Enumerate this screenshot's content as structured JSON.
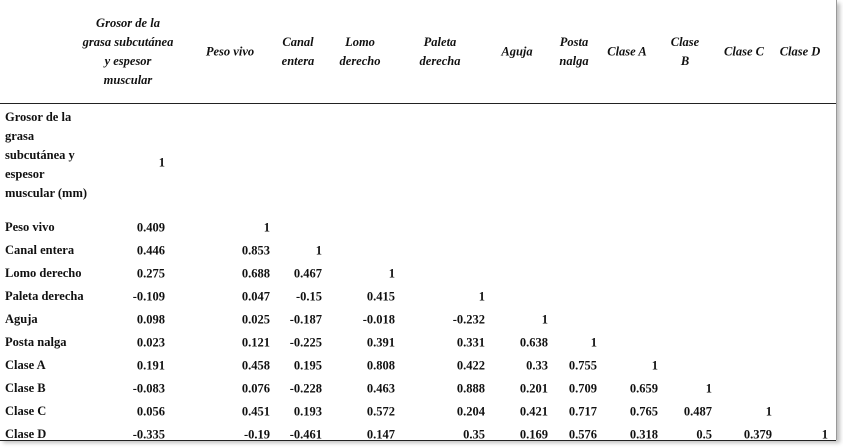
{
  "table": {
    "header": [
      "Grosor de la grasa subcutánea y espesor muscular",
      "Peso vivo",
      "Canal entera",
      "Lomo derecho",
      "Paleta derecha",
      "Aguja",
      "Posta nalga",
      "Clase A",
      "Clase B",
      "Clase C",
      "Clase D"
    ],
    "rows": [
      {
        "label": "Grosor de la grasa subcutánea y espesor muscular (mm)",
        "values": [
          1
        ]
      },
      {
        "label": "Peso vivo",
        "values": [
          0.409,
          1
        ]
      },
      {
        "label": "Canal entera",
        "values": [
          0.446,
          0.853,
          1
        ]
      },
      {
        "label": "Lomo derecho",
        "values": [
          0.275,
          0.688,
          0.467,
          1
        ]
      },
      {
        "label": "Paleta derecha",
        "values": [
          -0.109,
          0.047,
          -0.15,
          0.415,
          1
        ]
      },
      {
        "label": "Aguja",
        "values": [
          0.098,
          0.025,
          -0.187,
          -0.018,
          -0.232,
          1
        ]
      },
      {
        "label": "Posta nalga",
        "values": [
          0.023,
          0.121,
          -0.225,
          0.391,
          0.331,
          0.638,
          1
        ]
      },
      {
        "label": "Clase A",
        "values": [
          0.191,
          0.458,
          0.195,
          0.808,
          0.422,
          0.33,
          0.755,
          1
        ]
      },
      {
        "label": "Clase B",
        "values": [
          -0.083,
          0.076,
          -0.228,
          0.463,
          0.888,
          0.201,
          0.709,
          0.659,
          1
        ]
      },
      {
        "label": "Clase C",
        "values": [
          0.056,
          0.451,
          0.193,
          0.572,
          0.204,
          0.421,
          0.717,
          0.765,
          0.487,
          1
        ]
      },
      {
        "label": "Clase D",
        "values": [
          -0.335,
          -0.19,
          -0.461,
          0.147,
          0.35,
          0.169,
          0.576,
          0.318,
          0.5,
          0.379,
          1
        ]
      }
    ]
  }
}
